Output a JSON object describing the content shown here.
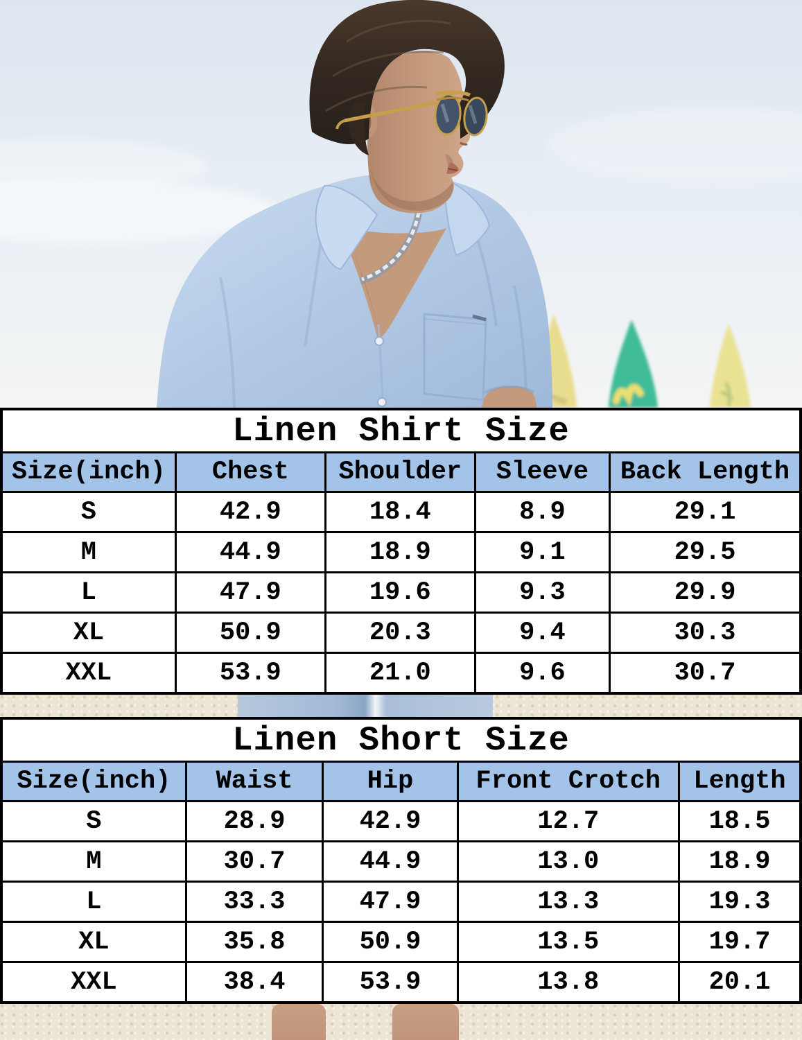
{
  "sections": [
    {
      "title": "Linen Shirt Size",
      "columns": [
        "Size(inch)",
        "Chest",
        "Shoulder",
        "Sleeve",
        "Back Length"
      ],
      "rows": [
        [
          "S",
          "42.9",
          "18.4",
          "8.9",
          "29.1"
        ],
        [
          "M",
          "44.9",
          "18.9",
          "9.1",
          "29.5"
        ],
        [
          "L",
          "47.9",
          "19.6",
          "9.3",
          "29.9"
        ],
        [
          "XL",
          "50.9",
          "20.3",
          "9.4",
          "30.3"
        ],
        [
          "XXL",
          "53.9",
          "21.0",
          "9.6",
          "30.7"
        ]
      ]
    },
    {
      "title": "Linen Short Size",
      "columns": [
        "Size(inch)",
        "Waist",
        "Hip",
        "Front Crotch",
        "Length"
      ],
      "rows": [
        [
          "S",
          "28.9",
          "42.9",
          "12.7",
          "18.5"
        ],
        [
          "M",
          "30.7",
          "44.9",
          "13.0",
          "18.9"
        ],
        [
          "L",
          "33.3",
          "47.9",
          "13.3",
          "19.3"
        ],
        [
          "XL",
          "35.8",
          "50.9",
          "13.5",
          "19.7"
        ],
        [
          "XXL",
          "38.4",
          "53.9",
          "13.8",
          "20.1"
        ]
      ]
    }
  ],
  "colors": {
    "table_header_blue": "#a3c4e8",
    "table_border": "#000000",
    "shirt_blue": "#aec5e2",
    "sky_blue": "#e3ebf3",
    "sand_beige": "#ece4d4",
    "skin_tan": "#c49a7c",
    "hair_brown": "#31271f",
    "surfboard_yellow": "#e8dd8f",
    "surfboard_teal": "#3fbc98",
    "surfboard_pale_yellow": "#eae293",
    "sunglasses_gold": "#c79f4a",
    "sunglasses_lens": "#42536a",
    "necklace_silver": "#e8ecf1"
  }
}
